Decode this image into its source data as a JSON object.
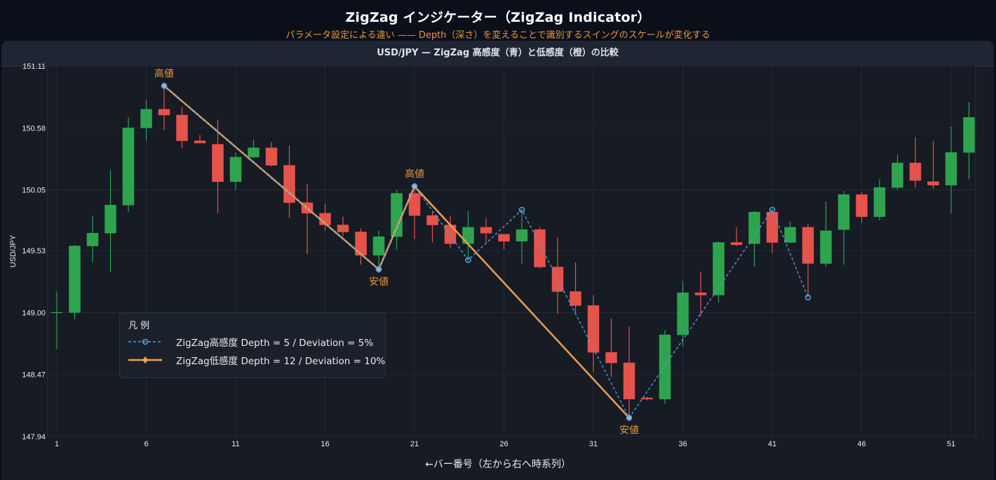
{
  "header": {
    "title": "ZigZag インジケーター（ZigZag Indicator）",
    "subtitle": "パラメータ設定による違い —— Depth（深さ）を変えることで識別するスイングのスケールが変化する"
  },
  "panel": {
    "title": "USD/JPY — ZigZag 高感度（青）と低感度（橙）の比較"
  },
  "legend": {
    "title": "凡 例",
    "items": [
      {
        "label": "ZigZag高感度  Depth = 5 / Deviation = 5%",
        "color": "#4a9fe8",
        "style": "dashed",
        "marker": "circle"
      },
      {
        "label": "ZigZag低感度  Depth = 12 / Deviation = 10%",
        "color": "#f2a154",
        "style": "solid",
        "marker": "diamond"
      }
    ]
  },
  "colors": {
    "up": "#2ea44f",
    "down": "#e5534b",
    "zigzag_high": "#4a9fe8",
    "zigzag_low": "#f2a154",
    "annotation": "#e8963a",
    "grid": "#222b38",
    "axis_text": "#e6e9ef"
  },
  "chart_data": {
    "type": "candlestick",
    "title": "USD/JPY — ZigZag 高感度（青）と低感度（橙）の比較",
    "xlabel": "←バー番号（左から右へ時系列）",
    "ylabel": "USD/JPY",
    "ylim": [
      147.94,
      151.11
    ],
    "xlim": [
      0.5,
      52.5
    ],
    "yticks": [
      147.94,
      148.47,
      149.0,
      149.53,
      150.05,
      150.58,
      151.11
    ],
    "xticks": [
      1,
      6,
      11,
      16,
      21,
      26,
      31,
      36,
      41,
      46,
      51
    ],
    "grid": true,
    "candles": [
      {
        "x": 1,
        "o": 149.0,
        "h": 149.18,
        "l": 148.69,
        "c": 149.0
      },
      {
        "x": 2,
        "o": 149.0,
        "h": 149.58,
        "l": 148.94,
        "c": 149.57
      },
      {
        "x": 3,
        "o": 149.57,
        "h": 149.83,
        "l": 149.43,
        "c": 149.68
      },
      {
        "x": 4,
        "o": 149.68,
        "h": 150.22,
        "l": 149.35,
        "c": 149.92
      },
      {
        "x": 5,
        "o": 149.92,
        "h": 150.67,
        "l": 149.86,
        "c": 150.58
      },
      {
        "x": 6,
        "o": 150.58,
        "h": 150.82,
        "l": 150.47,
        "c": 150.74
      },
      {
        "x": 7,
        "o": 150.74,
        "h": 150.94,
        "l": 150.56,
        "c": 150.69
      },
      {
        "x": 8,
        "o": 150.69,
        "h": 150.76,
        "l": 150.41,
        "c": 150.47
      },
      {
        "x": 9,
        "o": 150.47,
        "h": 150.52,
        "l": 150.45,
        "c": 150.45
      },
      {
        "x": 10,
        "o": 150.44,
        "h": 150.65,
        "l": 149.85,
        "c": 150.12
      },
      {
        "x": 11,
        "o": 150.12,
        "h": 150.37,
        "l": 150.05,
        "c": 150.33
      },
      {
        "x": 12,
        "o": 150.33,
        "h": 150.48,
        "l": 150.32,
        "c": 150.41
      },
      {
        "x": 13,
        "o": 150.41,
        "h": 150.46,
        "l": 150.25,
        "c": 150.26
      },
      {
        "x": 14,
        "o": 150.26,
        "h": 150.43,
        "l": 149.81,
        "c": 149.94
      },
      {
        "x": 15,
        "o": 149.94,
        "h": 150.1,
        "l": 149.5,
        "c": 149.85
      },
      {
        "x": 16,
        "o": 149.85,
        "h": 149.93,
        "l": 149.7,
        "c": 149.75
      },
      {
        "x": 17,
        "o": 149.75,
        "h": 149.82,
        "l": 149.65,
        "c": 149.69
      },
      {
        "x": 18,
        "o": 149.69,
        "h": 149.72,
        "l": 149.41,
        "c": 149.49
      },
      {
        "x": 19,
        "o": 149.49,
        "h": 149.7,
        "l": 149.37,
        "c": 149.65
      },
      {
        "x": 20,
        "o": 149.65,
        "h": 150.05,
        "l": 149.54,
        "c": 150.02
      },
      {
        "x": 21,
        "o": 150.02,
        "h": 150.08,
        "l": 149.63,
        "c": 149.83
      },
      {
        "x": 22,
        "o": 149.83,
        "h": 149.86,
        "l": 149.6,
        "c": 149.75
      },
      {
        "x": 23,
        "o": 149.75,
        "h": 149.83,
        "l": 149.55,
        "c": 149.59
      },
      {
        "x": 24,
        "o": 149.59,
        "h": 149.87,
        "l": 149.45,
        "c": 149.73
      },
      {
        "x": 25,
        "o": 149.73,
        "h": 149.81,
        "l": 149.6,
        "c": 149.68
      },
      {
        "x": 26,
        "o": 149.67,
        "h": 149.67,
        "l": 149.54,
        "c": 149.61
      },
      {
        "x": 27,
        "o": 149.61,
        "h": 149.88,
        "l": 149.42,
        "c": 149.71
      },
      {
        "x": 28,
        "o": 149.71,
        "h": 149.73,
        "l": 149.38,
        "c": 149.39
      },
      {
        "x": 29,
        "o": 149.39,
        "h": 149.64,
        "l": 148.99,
        "c": 149.18
      },
      {
        "x": 30,
        "o": 149.18,
        "h": 149.43,
        "l": 148.99,
        "c": 149.06
      },
      {
        "x": 31,
        "o": 149.06,
        "h": 149.15,
        "l": 148.49,
        "c": 148.66
      },
      {
        "x": 32,
        "o": 148.66,
        "h": 148.95,
        "l": 148.45,
        "c": 148.57
      },
      {
        "x": 33,
        "o": 148.57,
        "h": 148.88,
        "l": 148.1,
        "c": 148.26
      },
      {
        "x": 34,
        "o": 148.27,
        "h": 148.28,
        "l": 148.25,
        "c": 148.26
      },
      {
        "x": 35,
        "o": 148.26,
        "h": 148.85,
        "l": 148.22,
        "c": 148.81
      },
      {
        "x": 36,
        "o": 148.81,
        "h": 149.27,
        "l": 148.71,
        "c": 149.17
      },
      {
        "x": 37,
        "o": 149.17,
        "h": 149.35,
        "l": 148.97,
        "c": 149.15
      },
      {
        "x": 38,
        "o": 149.15,
        "h": 149.61,
        "l": 149.09,
        "c": 149.6
      },
      {
        "x": 39,
        "o": 149.6,
        "h": 149.73,
        "l": 149.57,
        "c": 149.58
      },
      {
        "x": 40,
        "o": 149.59,
        "h": 149.87,
        "l": 149.39,
        "c": 149.86
      },
      {
        "x": 41,
        "o": 149.86,
        "h": 149.88,
        "l": 149.51,
        "c": 149.6
      },
      {
        "x": 42,
        "o": 149.6,
        "h": 149.78,
        "l": 149.6,
        "c": 149.73
      },
      {
        "x": 43,
        "o": 149.73,
        "h": 149.76,
        "l": 149.13,
        "c": 149.42
      },
      {
        "x": 44,
        "o": 149.42,
        "h": 149.95,
        "l": 149.39,
        "c": 149.7
      },
      {
        "x": 45,
        "o": 149.71,
        "h": 150.04,
        "l": 149.41,
        "c": 150.01
      },
      {
        "x": 46,
        "o": 150.01,
        "h": 150.03,
        "l": 149.77,
        "c": 149.82
      },
      {
        "x": 47,
        "o": 149.82,
        "h": 150.14,
        "l": 149.79,
        "c": 150.07
      },
      {
        "x": 48,
        "o": 150.07,
        "h": 150.35,
        "l": 150.05,
        "c": 150.28
      },
      {
        "x": 49,
        "o": 150.28,
        "h": 150.5,
        "l": 150.07,
        "c": 150.13
      },
      {
        "x": 50,
        "o": 150.12,
        "h": 150.47,
        "l": 150.06,
        "c": 150.09
      },
      {
        "x": 51,
        "o": 150.09,
        "h": 150.59,
        "l": 149.85,
        "c": 150.37
      },
      {
        "x": 52,
        "o": 150.37,
        "h": 150.8,
        "l": 150.14,
        "c": 150.67
      }
    ],
    "series": [
      {
        "name": "ZigZag高感度 Depth = 5 / Deviation = 5%",
        "color": "#4a9fe8",
        "style": "dashed",
        "points": [
          [
            7,
            150.94
          ],
          [
            19,
            149.37
          ],
          [
            21,
            150.08
          ],
          [
            24,
            149.45
          ],
          [
            27,
            149.88
          ],
          [
            33,
            148.1
          ],
          [
            41,
            149.88
          ],
          [
            43,
            149.13
          ]
        ]
      },
      {
        "name": "ZigZag低感度 Depth = 12 / Deviation = 10%",
        "color": "#f2a154",
        "style": "solid",
        "points": [
          [
            7,
            150.94
          ],
          [
            19,
            149.37
          ],
          [
            21,
            150.08
          ],
          [
            33,
            148.1
          ]
        ]
      }
    ],
    "annotations": [
      {
        "x": 7,
        "y": 150.94,
        "text": "高値",
        "position": "above"
      },
      {
        "x": 19,
        "y": 149.37,
        "text": "安値",
        "position": "below"
      },
      {
        "x": 21,
        "y": 150.08,
        "text": "高値",
        "position": "above"
      },
      {
        "x": 33,
        "y": 148.1,
        "text": "安値",
        "position": "below"
      }
    ],
    "legend": {
      "position": "lower-left",
      "title": "凡 例"
    }
  }
}
